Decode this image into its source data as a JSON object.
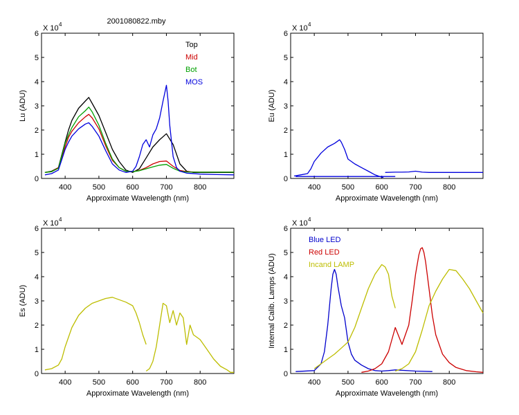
{
  "figure": {
    "title": "2001080822.mby",
    "background": "#ffffff"
  },
  "chart_data": [
    {
      "type": "line",
      "id": "lu",
      "ylabel": "Lu (ADU)",
      "xlabel": "Approximate Wavelength (nm)",
      "multiplier": "X 10",
      "exponent": "4",
      "xlim": [
        330,
        900
      ],
      "ylim": [
        0,
        6
      ],
      "xticks": [
        "400",
        "500",
        "600",
        "700",
        "800"
      ],
      "yticks": [
        "0",
        "1",
        "2",
        "3",
        "4",
        "5",
        "6"
      ],
      "legend_position": "top-right",
      "series": [
        {
          "name": "Top",
          "color": "#000000",
          "x": [
            340,
            360,
            380,
            400,
            410,
            420,
            440,
            460,
            470,
            480,
            500,
            520,
            540,
            560,
            580,
            600,
            620,
            640,
            660,
            680,
            700,
            720,
            740,
            760,
            780,
            800,
            850,
            900
          ],
          "y": [
            0.25,
            0.3,
            0.45,
            1.5,
            2.0,
            2.4,
            2.9,
            3.2,
            3.35,
            3.1,
            2.6,
            1.9,
            1.2,
            0.7,
            0.35,
            0.25,
            0.4,
            0.85,
            1.3,
            1.6,
            1.85,
            1.4,
            0.6,
            0.3,
            0.25,
            0.25,
            0.25,
            0.25
          ]
        },
        {
          "name": "Mid",
          "color": "#cc0000",
          "x": [
            340,
            360,
            380,
            400,
            410,
            420,
            440,
            460,
            470,
            480,
            500,
            520,
            540,
            560,
            580,
            600,
            620,
            640,
            660,
            680,
            700,
            720,
            740,
            760,
            780,
            800,
            850,
            900
          ],
          "y": [
            0.25,
            0.28,
            0.45,
            1.3,
            1.7,
            1.95,
            2.3,
            2.55,
            2.65,
            2.5,
            2.05,
            1.35,
            0.75,
            0.45,
            0.3,
            0.28,
            0.33,
            0.45,
            0.6,
            0.7,
            0.72,
            0.5,
            0.33,
            0.28,
            0.27,
            0.26,
            0.26,
            0.26
          ]
        },
        {
          "name": "Bot",
          "color": "#00a000",
          "x": [
            340,
            360,
            380,
            400,
            410,
            420,
            440,
            460,
            470,
            480,
            500,
            520,
            540,
            560,
            580,
            600,
            620,
            640,
            660,
            680,
            700,
            720,
            740,
            760,
            780,
            800,
            850,
            900
          ],
          "y": [
            0.25,
            0.28,
            0.42,
            1.45,
            1.8,
            2.1,
            2.55,
            2.8,
            2.95,
            2.75,
            2.2,
            1.45,
            0.8,
            0.45,
            0.3,
            0.28,
            0.32,
            0.4,
            0.48,
            0.55,
            0.58,
            0.42,
            0.3,
            0.27,
            0.26,
            0.26,
            0.26,
            0.26
          ]
        },
        {
          "name": "MOS",
          "color": "#0000dd",
          "x": [
            340,
            360,
            380,
            400,
            410,
            420,
            440,
            460,
            470,
            480,
            500,
            520,
            540,
            560,
            580,
            600,
            610,
            620,
            630,
            640,
            650,
            660,
            670,
            680,
            690,
            700,
            705,
            710,
            720,
            730,
            740,
            760,
            800,
            850,
            900
          ],
          "y": [
            0.15,
            0.2,
            0.35,
            1.2,
            1.5,
            1.75,
            2.05,
            2.25,
            2.3,
            2.15,
            1.75,
            1.15,
            0.6,
            0.35,
            0.25,
            0.3,
            0.5,
            0.9,
            1.4,
            1.6,
            1.3,
            1.8,
            2.05,
            2.5,
            3.2,
            3.85,
            3.2,
            2.2,
            0.9,
            0.45,
            0.3,
            0.22,
            0.18,
            0.16,
            0.15
          ]
        }
      ]
    },
    {
      "type": "line",
      "id": "eu",
      "ylabel": "Eu  (ADU)",
      "xlabel": "Approximate Wavelength (nm)",
      "multiplier": "X 10",
      "exponent": "4",
      "xlim": [
        330,
        900
      ],
      "ylim": [
        0,
        6
      ],
      "xticks": [
        "400",
        "500",
        "600",
        "700",
        "800"
      ],
      "yticks": [
        "0",
        "1",
        "2",
        "3",
        "4",
        "5",
        "6"
      ],
      "series": [
        {
          "name": "",
          "color": "#0000dd",
          "x": [
            340,
            360,
            380,
            390,
            400,
            420,
            440,
            460,
            470,
            475,
            480,
            490,
            500,
            510,
            520,
            540,
            560,
            580,
            590,
            600,
            605
          ],
          "y": [
            0.1,
            0.15,
            0.2,
            0.4,
            0.7,
            1.05,
            1.3,
            1.45,
            1.55,
            1.6,
            1.5,
            1.2,
            0.8,
            0.7,
            0.6,
            0.45,
            0.3,
            0.15,
            0.1,
            0.05,
            0.05
          ]
        },
        {
          "name": "",
          "color": "#0000dd",
          "x": [
            610,
            640,
            660,
            680,
            700,
            720,
            740,
            760,
            800,
            850,
            900
          ],
          "y": [
            0.25,
            0.26,
            0.26,
            0.27,
            0.3,
            0.26,
            0.25,
            0.25,
            0.25,
            0.25,
            0.25
          ]
        },
        {
          "name": "",
          "color": "#0000dd",
          "x": [
            345,
            640
          ],
          "y": [
            0.08,
            0.08
          ]
        }
      ]
    },
    {
      "type": "line",
      "id": "es",
      "ylabel": "Es  (ADU)",
      "xlabel": "Approximate Wavelength (nm)",
      "multiplier": "X 10",
      "exponent": "4",
      "xlim": [
        330,
        900
      ],
      "ylim": [
        0,
        6
      ],
      "xticks": [
        "400",
        "500",
        "600",
        "700",
        "800"
      ],
      "yticks": [
        "0",
        "1",
        "2",
        "3",
        "4",
        "5",
        "6"
      ],
      "series": [
        {
          "name": "",
          "color": "#bdbd00",
          "x": [
            340,
            360,
            380,
            390,
            400,
            420,
            440,
            460,
            480,
            500,
            520,
            540,
            560,
            580,
            600,
            610,
            620,
            630,
            640
          ],
          "y": [
            0.15,
            0.2,
            0.35,
            0.6,
            1.1,
            1.9,
            2.4,
            2.7,
            2.9,
            3.0,
            3.1,
            3.15,
            3.05,
            2.95,
            2.8,
            2.5,
            2.1,
            1.6,
            1.2
          ]
        },
        {
          "name": "",
          "color": "#bdbd00",
          "x": [
            640,
            650,
            660,
            670,
            680,
            690,
            700,
            710,
            720,
            730,
            740,
            750,
            760,
            770,
            780,
            800,
            820,
            840,
            860,
            880,
            890,
            900
          ],
          "y": [
            0.1,
            0.2,
            0.5,
            1.1,
            2.0,
            2.9,
            2.8,
            2.1,
            2.6,
            2.0,
            2.5,
            2.3,
            1.2,
            2.0,
            1.6,
            1.4,
            1.0,
            0.6,
            0.3,
            0.15,
            0.05,
            0.05
          ]
        }
      ]
    },
    {
      "type": "line",
      "id": "calib",
      "ylabel": "Internal Calib. Lamps (ADU)",
      "xlabel": "Approximate Wavelength (nm)",
      "multiplier": "X 10",
      "exponent": "4",
      "xlim": [
        330,
        900
      ],
      "ylim": [
        0,
        6
      ],
      "xticks": [
        "400",
        "500",
        "600",
        "700",
        "800"
      ],
      "yticks": [
        "0",
        "1",
        "2",
        "3",
        "4",
        "5",
        "6"
      ],
      "legend_position": "top-left",
      "series": [
        {
          "name": "Blue LED",
          "color": "#0000cc",
          "x": [
            345,
            400,
            420,
            430,
            440,
            450,
            455,
            460,
            465,
            470,
            480,
            490,
            500,
            510,
            520,
            540,
            560,
            580,
            600,
            620,
            640,
            700,
            750
          ],
          "y": [
            0.08,
            0.12,
            0.4,
            0.9,
            2.0,
            3.5,
            4.1,
            4.3,
            4.1,
            3.6,
            2.8,
            2.3,
            1.3,
            0.8,
            0.55,
            0.35,
            0.2,
            0.12,
            0.1,
            0.12,
            0.15,
            0.1,
            0.08
          ]
        },
        {
          "name": "Red LED",
          "color": "#cc0000",
          "x": [
            540,
            560,
            580,
            600,
            620,
            640,
            660,
            680,
            690,
            700,
            710,
            715,
            720,
            725,
            730,
            740,
            750,
            760,
            780,
            800,
            820,
            850,
            880,
            900
          ],
          "y": [
            0.05,
            0.1,
            0.2,
            0.4,
            0.9,
            1.9,
            1.2,
            2.0,
            3.0,
            4.1,
            4.9,
            5.15,
            5.2,
            5.0,
            4.6,
            3.5,
            2.4,
            1.6,
            0.8,
            0.45,
            0.25,
            0.12,
            0.07,
            0.05
          ]
        },
        {
          "name": "Incand LAMP",
          "color": "#bdbd00",
          "x": [
            400,
            420,
            440,
            460,
            480,
            500,
            520,
            540,
            560,
            580,
            600,
            610,
            620,
            630,
            640
          ],
          "y": [
            0.2,
            0.4,
            0.6,
            0.8,
            1.05,
            1.3,
            1.9,
            2.7,
            3.5,
            4.1,
            4.5,
            4.4,
            4.1,
            3.2,
            2.7
          ]
        },
        {
          "name": "",
          "color": "#bdbd00",
          "x": [
            640,
            660,
            680,
            700,
            720,
            740,
            760,
            780,
            800,
            820,
            840,
            860,
            880,
            900
          ],
          "y": [
            0.1,
            0.2,
            0.4,
            0.9,
            1.8,
            2.8,
            3.4,
            3.9,
            4.3,
            4.25,
            3.9,
            3.5,
            3.0,
            2.5
          ]
        }
      ]
    }
  ]
}
